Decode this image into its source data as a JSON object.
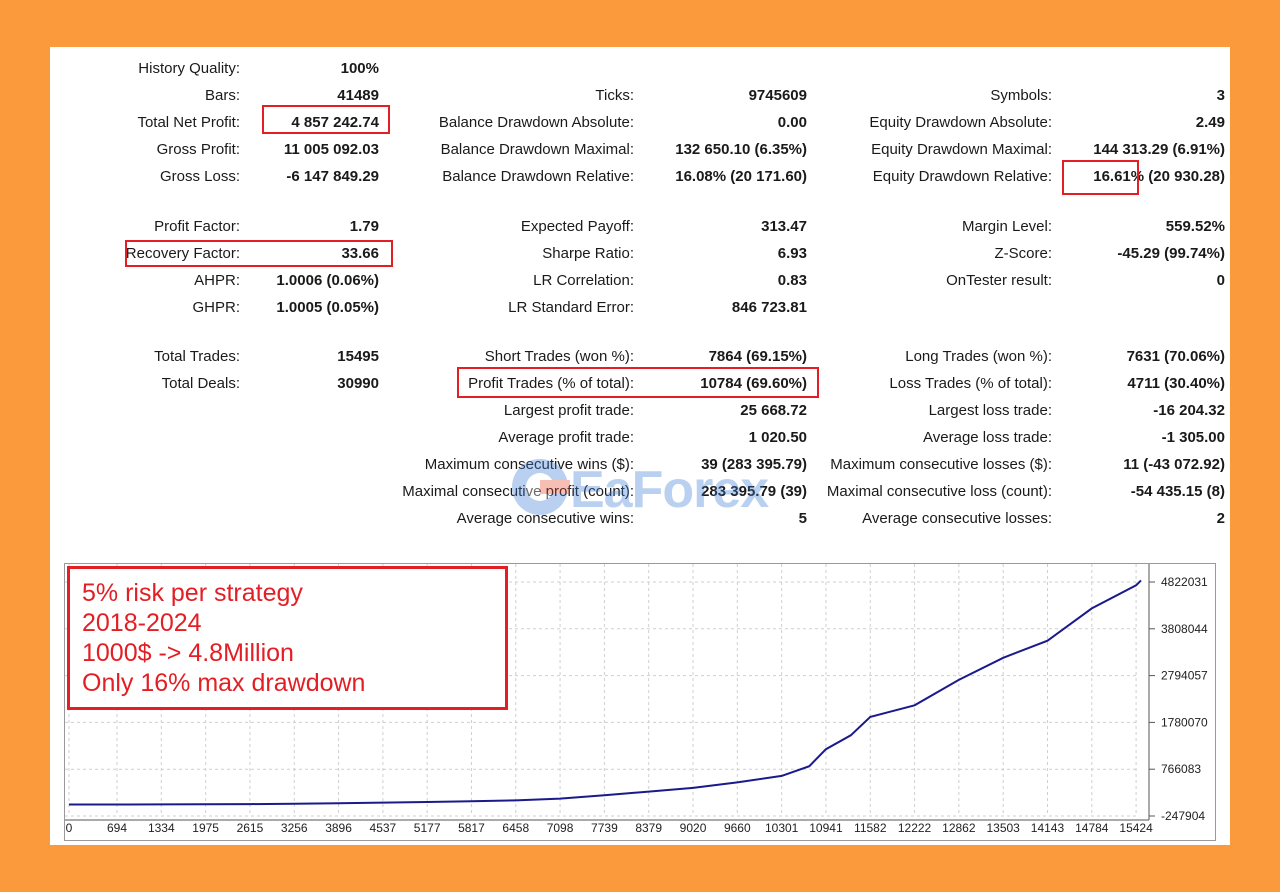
{
  "stats": {
    "col1": [
      {
        "key": "history_quality",
        "label": "History Quality:",
        "value": "100%",
        "row": 0
      },
      {
        "key": "bars",
        "label": "Bars:",
        "value": "41489",
        "row": 1
      },
      {
        "key": "total_net_profit",
        "label": "Total Net Profit:",
        "value": "4 857 242.74",
        "row": 2
      },
      {
        "key": "gross_profit",
        "label": "Gross Profit:",
        "value": "11 005 092.03",
        "row": 3
      },
      {
        "key": "gross_loss",
        "label": "Gross Loss:",
        "value": "-6 147 849.29",
        "row": 4
      },
      {
        "key": "profit_factor",
        "label": "Profit Factor:",
        "value": "1.79",
        "row": 5
      },
      {
        "key": "recovery_factor",
        "label": "Recovery Factor:",
        "value": "33.66",
        "row": 6
      },
      {
        "key": "ahpr",
        "label": "AHPR:",
        "value": "1.0006 (0.06%)",
        "row": 7
      },
      {
        "key": "ghpr",
        "label": "GHPR:",
        "value": "1.0005 (0.05%)",
        "row": 8
      },
      {
        "key": "total_trades",
        "label": "Total Trades:",
        "value": "15495",
        "row": 9
      },
      {
        "key": "total_deals",
        "label": "Total Deals:",
        "value": "30990",
        "row": 10
      }
    ],
    "col2": [
      {
        "key": "ticks",
        "label": "Ticks:",
        "value": "9745609",
        "row": 1
      },
      {
        "key": "balance_dd_abs",
        "label": "Balance Drawdown Absolute:",
        "value": "0.00",
        "row": 2
      },
      {
        "key": "balance_dd_max",
        "label": "Balance Drawdown Maximal:",
        "value": "132 650.10 (6.35%)",
        "row": 3
      },
      {
        "key": "balance_dd_rel",
        "label": "Balance Drawdown Relative:",
        "value": "16.08% (20 171.60)",
        "row": 4
      },
      {
        "key": "expected_payoff",
        "label": "Expected Payoff:",
        "value": "313.47",
        "row": 5
      },
      {
        "key": "sharpe_ratio",
        "label": "Sharpe Ratio:",
        "value": "6.93",
        "row": 6
      },
      {
        "key": "lr_correlation",
        "label": "LR Correlation:",
        "value": "0.83",
        "row": 7
      },
      {
        "key": "lr_std_error",
        "label": "LR Standard Error:",
        "value": "846 723.81",
        "row": 8
      },
      {
        "key": "short_trades",
        "label": "Short Trades (won %):",
        "value": "7864 (69.15%)",
        "row": 9
      },
      {
        "key": "profit_trades",
        "label": "Profit Trades (% of total):",
        "value": "10784 (69.60%)",
        "row": 10
      },
      {
        "key": "largest_profit",
        "label": "Largest profit trade:",
        "value": "25 668.72",
        "row": 11
      },
      {
        "key": "average_profit",
        "label": "Average profit trade:",
        "value": "1 020.50",
        "row": 12
      },
      {
        "key": "max_consec_wins",
        "label": "Maximum consecutive wins ($):",
        "value": "39 (283 395.79)",
        "row": 13
      },
      {
        "key": "maximal_consec_profit",
        "label": "Maximal consecutive profit (count):",
        "value": "283 395.79 (39)",
        "row": 14
      },
      {
        "key": "avg_consec_wins",
        "label": "Average consecutive wins:",
        "value": "5",
        "row": 15
      }
    ],
    "col3": [
      {
        "key": "symbols",
        "label": "Symbols:",
        "value": "3",
        "row": 1
      },
      {
        "key": "equity_dd_abs",
        "label": "Equity Drawdown Absolute:",
        "value": "2.49",
        "row": 2
      },
      {
        "key": "equity_dd_max",
        "label": "Equity Drawdown Maximal:",
        "value": "144 313.29 (6.91%)",
        "row": 3
      },
      {
        "key": "equity_dd_rel",
        "label": "Equity Drawdown Relative:",
        "value": "16.61% (20 930.28)",
        "row": 4
      },
      {
        "key": "margin_level",
        "label": "Margin Level:",
        "value": "559.52%",
        "row": 5
      },
      {
        "key": "z_score",
        "label": "Z-Score:",
        "value": "-45.29 (99.74%)",
        "row": 6
      },
      {
        "key": "ontester",
        "label": "OnTester result:",
        "value": "0",
        "row": 7
      },
      {
        "key": "long_trades",
        "label": "Long Trades (won %):",
        "value": "7631 (70.06%)",
        "row": 9
      },
      {
        "key": "loss_trades",
        "label": "Loss Trades (% of total):",
        "value": "4711 (30.40%)",
        "row": 10
      },
      {
        "key": "largest_loss",
        "label": "Largest loss trade:",
        "value": "-16 204.32",
        "row": 11
      },
      {
        "key": "average_loss",
        "label": "Average loss trade:",
        "value": "-1 305.00",
        "row": 12
      },
      {
        "key": "max_consec_losses",
        "label": "Maximum consecutive losses ($):",
        "value": "11 (-43 072.92)",
        "row": 13
      },
      {
        "key": "maximal_consec_loss",
        "label": "Maximal consecutive loss (count):",
        "value": "-54 435.15 (8)",
        "row": 14
      },
      {
        "key": "avg_consec_losses",
        "label": "Average consecutive losses:",
        "value": "2",
        "row": 15
      }
    ]
  },
  "watermark": {
    "text": "EaForex"
  },
  "note": {
    "lines": [
      "5% risk per strategy",
      "2018-2024",
      "1000$ -> 4.8Million",
      "Only 16% max drawdown"
    ]
  },
  "colors": {
    "highlight": "#e31e24",
    "line": "#1a1a8c",
    "background": "#fb9a3c"
  },
  "chart_data": {
    "type": "line",
    "x_ticks": [
      "0",
      "694",
      "1334",
      "1975",
      "2615",
      "3256",
      "3896",
      "4537",
      "5177",
      "5817",
      "6458",
      "7098",
      "7739",
      "8379",
      "9020",
      "9660",
      "10301",
      "10941",
      "11582",
      "12222",
      "12862",
      "13503",
      "14143",
      "14784",
      "15424"
    ],
    "y_ticks": [
      "4822031",
      "3808044",
      "2794057",
      "1780070",
      "766083",
      "-247904"
    ],
    "x_range": [
      0,
      15495
    ],
    "y_range": [
      -247904,
      4822031
    ],
    "grid": true,
    "series": [
      {
        "x": [
          0,
          694,
          1334,
          1975,
          2615,
          3256,
          3896,
          4537,
          5177,
          5817,
          6458,
          7098,
          7739,
          8379,
          9020,
          9660,
          10301,
          10700,
          10941,
          11300,
          11582,
          12222,
          12862,
          13503,
          14143,
          14784,
          15424,
          15495
        ],
        "y": [
          1000,
          1500,
          3000,
          6000,
          10000,
          18000,
          30000,
          42000,
          55000,
          70000,
          90000,
          130000,
          200000,
          280000,
          360000,
          480000,
          620000,
          830000,
          1200000,
          1500000,
          1900000,
          2150000,
          2700000,
          3180000,
          3550000,
          4250000,
          4750000,
          4857243
        ]
      }
    ]
  }
}
